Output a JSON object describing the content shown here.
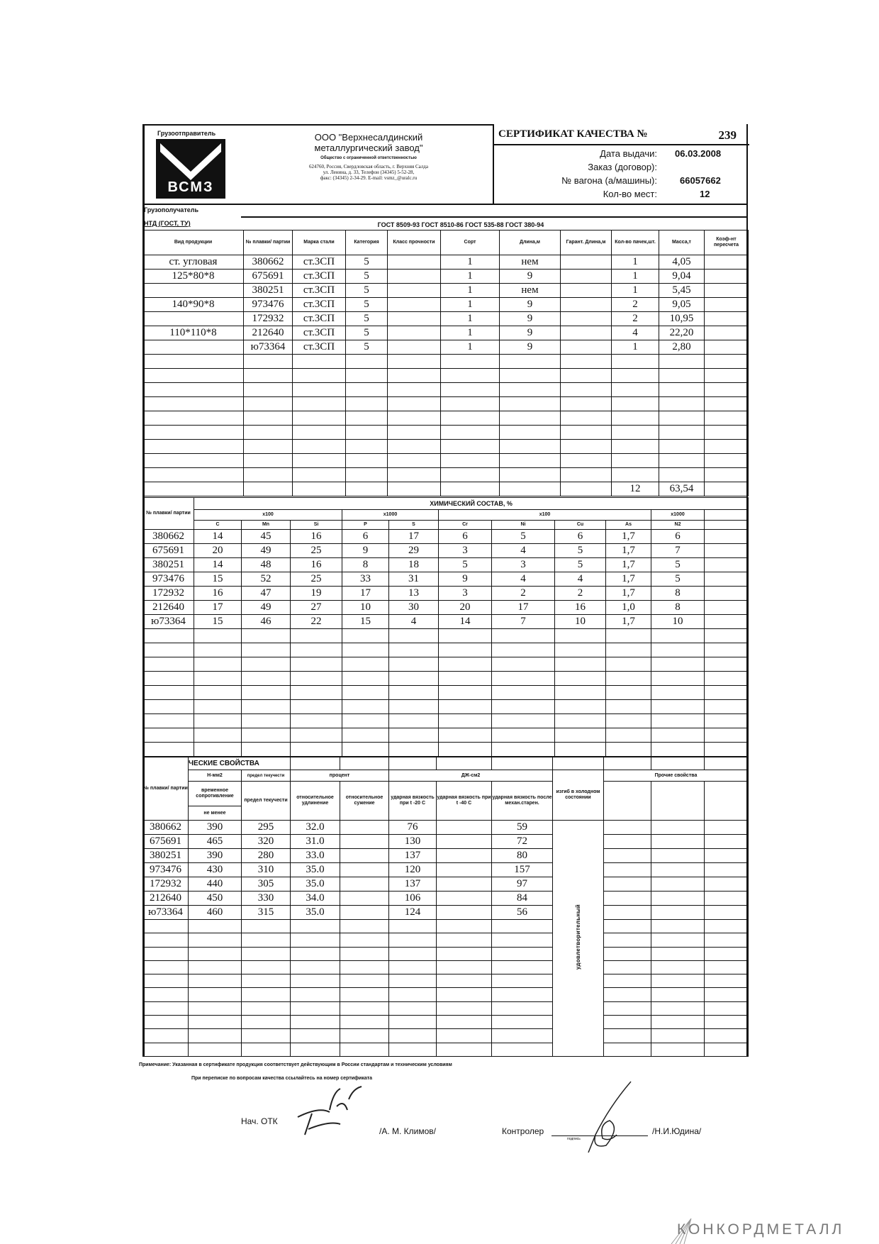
{
  "header": {
    "shipper_label": "Грузоотправитель",
    "logo_text": "ВСМЗ",
    "company_line1": "ООО \"Верхнесалдинский",
    "company_line2": "металлургический завод\"",
    "company_type": "Общество с ограниченной ответственностью",
    "address1": "624760, Россия, Свердловская область, г. Верхняя Салда",
    "address2": "ул. Ленина, д. 33, Телефон (34345) 5-52-28,",
    "address3": "факс: (34345) 2-34-29. E-mail: vsmz_@uralc.ru",
    "cert_title": "СЕРТИФИКАТ КАЧЕСТВА №",
    "cert_number": "239",
    "issue_date_label": "Дата выдачи:",
    "issue_date": "06.03.2008",
    "order_label": "Заказ (договор):",
    "wagon_label": "№ вагона (а/машины):",
    "wagon_number": "66057662",
    "places_label": "Кол-во мест:",
    "places": "12",
    "consignee_label": "Грузополучатель",
    "ntd_label": "НТД (ГОСТ, ТУ)",
    "ntd_value": "ГОСТ 8509-93 ГОСТ 8510-86 ГОСТ 535-88 ГОСТ 380-94"
  },
  "products": {
    "columns": [
      "Вид продукции",
      "№ плавки/ партии",
      "Марка стали",
      "Категория",
      "Класс прочности",
      "Сорт",
      "Длина,м",
      "Гарант. Длина,м",
      "Кол-во пачек,шт.",
      "Масса,т",
      "Коэф-нт пересчета"
    ],
    "rows": [
      [
        "ст. угловая",
        "380662",
        "ст.3СП",
        "5",
        "",
        "1",
        "нем",
        "",
        "1",
        "4,05",
        ""
      ],
      [
        "125*80*8",
        "675691",
        "ст.3СП",
        "5",
        "",
        "1",
        "9",
        "",
        "1",
        "9,04",
        ""
      ],
      [
        "",
        "380251",
        "ст.3СП",
        "5",
        "",
        "1",
        "нем",
        "",
        "1",
        "5,45",
        ""
      ],
      [
        "140*90*8",
        "973476",
        "ст.3СП",
        "5",
        "",
        "1",
        "9",
        "",
        "2",
        "9,05",
        ""
      ],
      [
        "",
        "172932",
        "ст.3СП",
        "5",
        "",
        "1",
        "9",
        "",
        "2",
        "10,95",
        ""
      ],
      [
        "110*110*8",
        "212640",
        "ст.3СП",
        "5",
        "",
        "1",
        "9",
        "",
        "4",
        "22,20",
        ""
      ],
      [
        "",
        "ю73364",
        "ст.3СП",
        "5",
        "",
        "1",
        "9",
        "",
        "1",
        "2,80",
        ""
      ]
    ],
    "total_qty": "12",
    "total_mass": "63,54"
  },
  "chemistry": {
    "heat_label": "№ плавки/ партии",
    "title": "ХИМИЧЕСКИЙ СОСТАВ, %",
    "mult_1": "x100",
    "mult_2": "x1000",
    "mult_3": "x100",
    "mult_4": "x1000",
    "elements": [
      "С",
      "Mn",
      "Si",
      "P",
      "S",
      "Cr",
      "Ni",
      "Cu",
      "As",
      "N2",
      ""
    ],
    "rows": [
      [
        "380662",
        "14",
        "45",
        "16",
        "6",
        "17",
        "6",
        "5",
        "6",
        "1,7",
        "6",
        ""
      ],
      [
        "675691",
        "20",
        "49",
        "25",
        "9",
        "29",
        "3",
        "4",
        "5",
        "1,7",
        "7",
        ""
      ],
      [
        "380251",
        "14",
        "48",
        "16",
        "8",
        "18",
        "5",
        "3",
        "5",
        "1,7",
        "5",
        ""
      ],
      [
        "973476",
        "15",
        "52",
        "25",
        "33",
        "31",
        "9",
        "4",
        "4",
        "1,7",
        "5",
        ""
      ],
      [
        "172932",
        "16",
        "47",
        "19",
        "17",
        "13",
        "3",
        "2",
        "2",
        "1,7",
        "8",
        ""
      ],
      [
        "212640",
        "17",
        "49",
        "27",
        "10",
        "30",
        "20",
        "17",
        "16",
        "1,0",
        "8",
        ""
      ],
      [
        "ю73364",
        "15",
        "46",
        "22",
        "15",
        "4",
        "14",
        "7",
        "10",
        "1,7",
        "10",
        ""
      ]
    ]
  },
  "mechanical": {
    "heat_label": "№ плавки/ партии",
    "title": "ЧЕСКИЕ СВОЙСТВА",
    "unit_n": "Н-мм2",
    "yield_top": "предел текучести",
    "percent": "процент",
    "unit_j": "ДЖ-см2",
    "bend_label": "изгиб в холодном состоянии",
    "other_label": "Прочие свойства",
    "tensile": "временное сопротивление",
    "yield": "предел текучести",
    "elongation": "относительное удлинение",
    "reduction": "относительное сужение",
    "impact_20": "ударная вязкость при t -20 С",
    "impact_40": "ударная вязкость при t -40 С",
    "impact_aged": "ударная вязкость после механ.старен.",
    "min_label": "не менее",
    "bend_result": "удовлетворительный",
    "rows": [
      [
        "380662",
        "390",
        "295",
        "32.0",
        "",
        "76",
        "",
        "59"
      ],
      [
        "675691",
        "465",
        "320",
        "31.0",
        "",
        "130",
        "",
        "72"
      ],
      [
        "380251",
        "390",
        "280",
        "33.0",
        "",
        "137",
        "",
        "80"
      ],
      [
        "973476",
        "430",
        "310",
        "35.0",
        "",
        "120",
        "",
        "157"
      ],
      [
        "172932",
        "440",
        "305",
        "35.0",
        "",
        "137",
        "",
        "97"
      ],
      [
        "212640",
        "450",
        "330",
        "34.0",
        "",
        "106",
        "",
        "84"
      ],
      [
        "ю73364",
        "460",
        "315",
        "35.0",
        "",
        "124",
        "",
        "56"
      ]
    ]
  },
  "footer": {
    "note": "Примечание: Указанная в сертификате продукция соответствует действующим в России стандартам и техническим условиям",
    "note2": "При переписке по вопросам качества ссылайтесь на номер сертификата",
    "otk_label": "Нач. ОТК",
    "otk_name": "/А. М. Климов/",
    "controller_label": "Контролер",
    "signature_caption": "подпись",
    "controller_name": "/Н.И.Юдина/"
  },
  "watermark": "КОНКОРДМЕТАЛЛ"
}
